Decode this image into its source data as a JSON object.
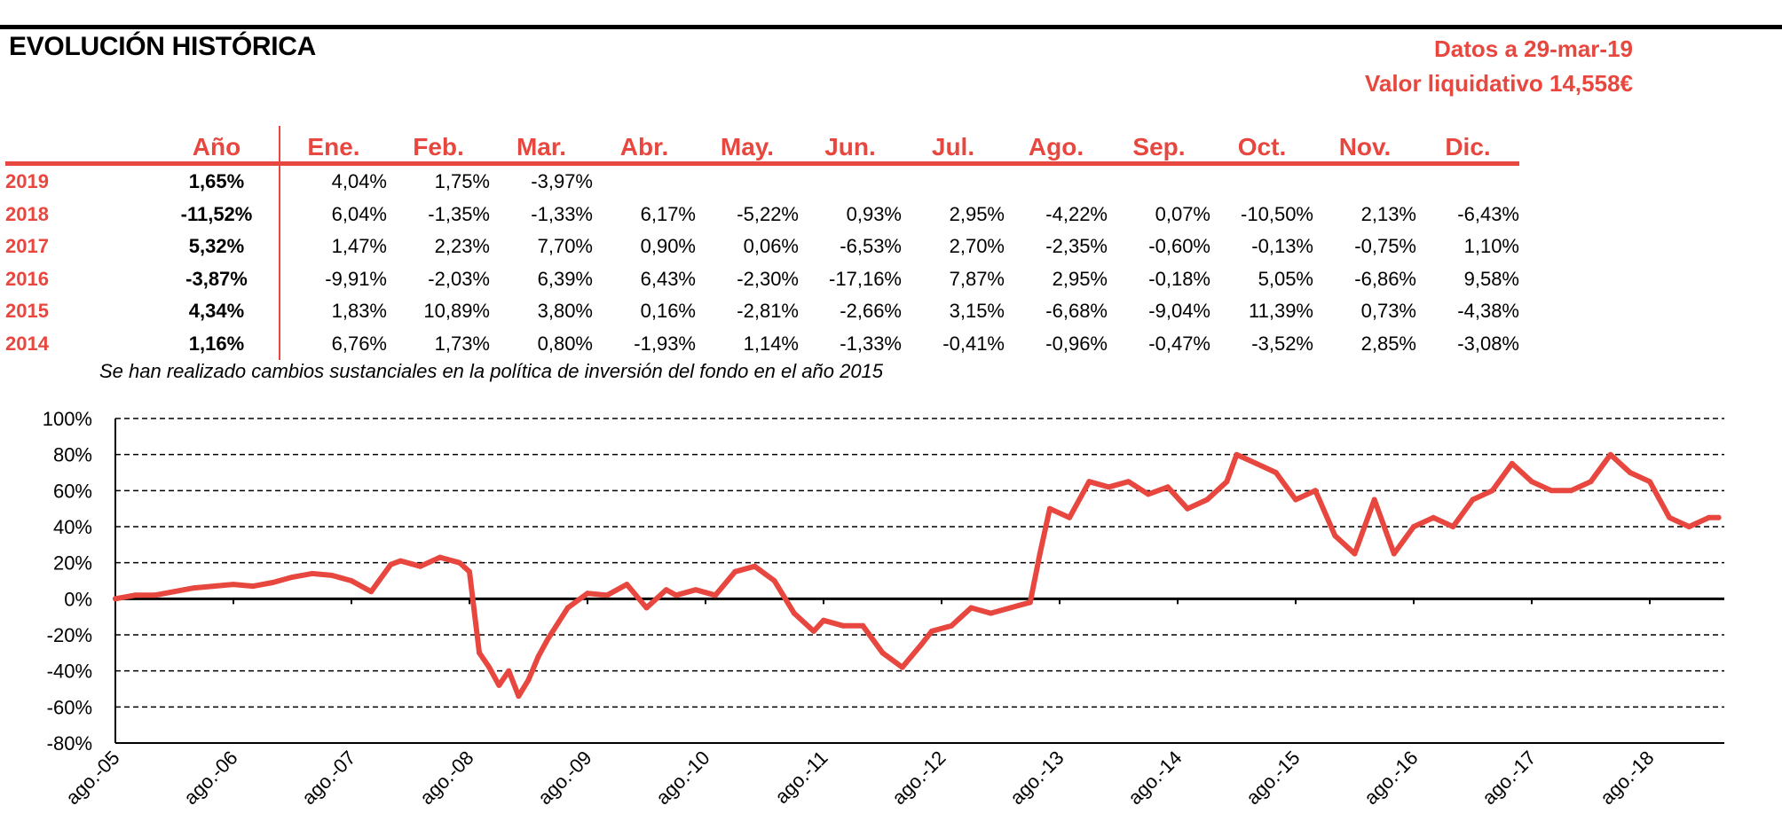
{
  "header": {
    "title": "EVOLUCIÓN HISTÓRICA",
    "date_label": "Datos a 29-mar-19",
    "nav_label": "Valor liquidativo 14,558€"
  },
  "colors": {
    "accent": "#e8473f",
    "text": "#000000"
  },
  "table": {
    "headers": [
      "Año",
      "Ene.",
      "Feb.",
      "Mar.",
      "Abr.",
      "May.",
      "Jun.",
      "Jul.",
      "Ago.",
      "Sep.",
      "Oct.",
      "Nov.",
      "Dic."
    ],
    "rows": [
      {
        "year": "2019",
        "annual": "1,65%",
        "months": [
          "4,04%",
          "1,75%",
          "-3,97%",
          "",
          "",
          "",
          "",
          "",
          "",
          "",
          "",
          ""
        ]
      },
      {
        "year": "2018",
        "annual": "-11,52%",
        "months": [
          "6,04%",
          "-1,35%",
          "-1,33%",
          "6,17%",
          "-5,22%",
          "0,93%",
          "2,95%",
          "-4,22%",
          "0,07%",
          "-10,50%",
          "2,13%",
          "-6,43%"
        ]
      },
      {
        "year": "2017",
        "annual": "5,32%",
        "months": [
          "1,47%",
          "2,23%",
          "7,70%",
          "0,90%",
          "0,06%",
          "-6,53%",
          "2,70%",
          "-2,35%",
          "-0,60%",
          "-0,13%",
          "-0,75%",
          "1,10%"
        ]
      },
      {
        "year": "2016",
        "annual": "-3,87%",
        "months": [
          "-9,91%",
          "-2,03%",
          "6,39%",
          "6,43%",
          "-2,30%",
          "-17,16%",
          "7,87%",
          "2,95%",
          "-0,18%",
          "5,05%",
          "-6,86%",
          "9,58%"
        ]
      },
      {
        "year": "2015",
        "annual": "4,34%",
        "months": [
          "1,83%",
          "10,89%",
          "3,80%",
          "0,16%",
          "-2,81%",
          "-2,66%",
          "3,15%",
          "-6,68%",
          "-9,04%",
          "11,39%",
          "0,73%",
          "-4,38%"
        ]
      },
      {
        "year": "2014",
        "annual": "1,16%",
        "months": [
          "6,76%",
          "1,73%",
          "0,80%",
          "-1,93%",
          "1,14%",
          "-1,33%",
          "-0,41%",
          "-0,96%",
          "-0,47%",
          "-3,52%",
          "2,85%",
          "-3,08%"
        ]
      }
    ]
  },
  "note": "Se han realizado cambios sustanciales en la política de inversión del fondo en el año 2015",
  "chart_data": {
    "type": "line",
    "series": [
      {
        "color": "#e8473f",
        "x": [
          "2005-08",
          "2005-10",
          "2005-12",
          "2006-02",
          "2006-04",
          "2006-06",
          "2006-08",
          "2006-10",
          "2006-12",
          "2007-02",
          "2007-04",
          "2007-06",
          "2007-08",
          "2007-10",
          "2007-12",
          "2008-01",
          "2008-03",
          "2008-05",
          "2008-07",
          "2008-08",
          "2008-09",
          "2008-10",
          "2008-11",
          "2008-12",
          "2009-01",
          "2009-02",
          "2009-03",
          "2009-04",
          "2009-06",
          "2009-08",
          "2009-10",
          "2009-12",
          "2010-02",
          "2010-04",
          "2010-05",
          "2010-07",
          "2010-09",
          "2010-11",
          "2011-01",
          "2011-03",
          "2011-05",
          "2011-07",
          "2011-08",
          "2011-10",
          "2011-12",
          "2012-02",
          "2012-04",
          "2012-06",
          "2012-07",
          "2012-09",
          "2012-11",
          "2013-01",
          "2013-03",
          "2013-05",
          "2013-06",
          "2013-07",
          "2013-09",
          "2013-11",
          "2014-01",
          "2014-03",
          "2014-05",
          "2014-07",
          "2014-09",
          "2014-11",
          "2015-01",
          "2015-02",
          "2015-04",
          "2015-06",
          "2015-08",
          "2015-10",
          "2015-12",
          "2016-02",
          "2016-04",
          "2016-06",
          "2016-08",
          "2016-10",
          "2016-12",
          "2017-02",
          "2017-04",
          "2017-06",
          "2017-08",
          "2017-10",
          "2017-12",
          "2018-02",
          "2018-04",
          "2018-06",
          "2018-08",
          "2018-10",
          "2018-12",
          "2019-02",
          "2019-03"
        ],
        "y": [
          0,
          2,
          2,
          4,
          6,
          7,
          8,
          7,
          9,
          12,
          14,
          13,
          10,
          4,
          19,
          21,
          18,
          23,
          20,
          15,
          -30,
          -38,
          -48,
          -40,
          -54,
          -45,
          -32,
          -22,
          -5,
          3,
          2,
          8,
          -5,
          5,
          2,
          5,
          2,
          15,
          18,
          10,
          -8,
          -18,
          -12,
          -15,
          -15,
          -30,
          -38,
          -25,
          -18,
          -15,
          -5,
          -8,
          -5,
          -2,
          25,
          50,
          45,
          65,
          62,
          65,
          58,
          62,
          50,
          55,
          65,
          80,
          75,
          70,
          55,
          60,
          35,
          25,
          55,
          25,
          40,
          45,
          40,
          55,
          60,
          75,
          65,
          60,
          60,
          65,
          80,
          70,
          65,
          45,
          40,
          45,
          45
        ],
        "ylim": [
          -80,
          100
        ]
      }
    ],
    "ylim": [
      -80,
      100
    ],
    "yticks": [
      "100%",
      "80%",
      "60%",
      "40%",
      "20%",
      "0%",
      "-20%",
      "-40%",
      "-60%",
      "-80%"
    ],
    "xticks": [
      "ago.-05",
      "ago.-06",
      "ago.-07",
      "ago.-08",
      "ago.-09",
      "ago.-10",
      "ago.-11",
      "ago.-12",
      "ago.-13",
      "ago.-14",
      "ago.-15",
      "ago.-16",
      "ago.-17",
      "ago.-18"
    ],
    "grid": true,
    "legend": "none"
  }
}
